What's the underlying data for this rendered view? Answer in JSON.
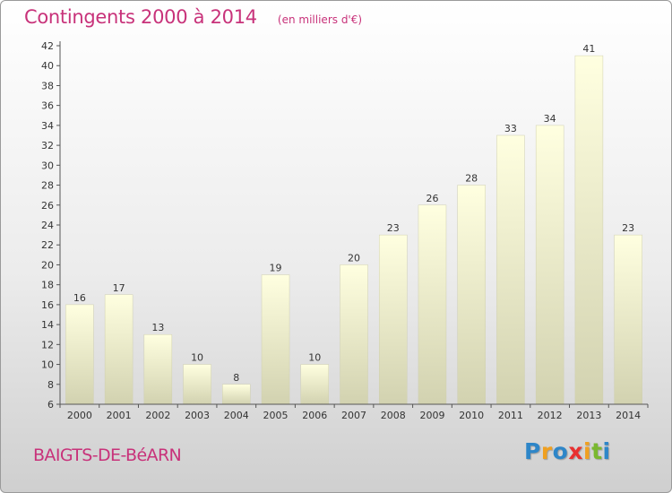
{
  "header": {
    "title": "Contingents 2000 à 2014",
    "subtitle": "(en milliers d'€)"
  },
  "footer": {
    "place": "BAIGTS-DE-BéARN",
    "logo": [
      "P",
      "r",
      "o",
      "x",
      "i",
      "t",
      "i"
    ],
    "logo_colors": [
      "#2e86c8",
      "#f0a020",
      "#2e86c8",
      "#e83030",
      "#f0a020",
      "#7ab830",
      "#2e86c8"
    ]
  },
  "colors": {
    "title": "#c8327a",
    "bar_top": "#ffffe0",
    "bar_bottom": "#d2d2b0"
  },
  "chart_data": {
    "type": "bar",
    "categories": [
      "2000",
      "2001",
      "2002",
      "2003",
      "2004",
      "2005",
      "2006",
      "2007",
      "2008",
      "2009",
      "2010",
      "2011",
      "2012",
      "2013",
      "2014"
    ],
    "values": [
      16,
      17,
      13,
      10,
      8,
      19,
      10,
      20,
      23,
      26,
      28,
      33,
      34,
      41,
      23
    ],
    "ylim": [
      6,
      42
    ],
    "yticks": [
      6,
      8,
      10,
      12,
      14,
      16,
      18,
      20,
      22,
      24,
      26,
      28,
      30,
      32,
      34,
      36,
      38,
      40,
      42
    ],
    "grid": false,
    "data_labels": true
  }
}
